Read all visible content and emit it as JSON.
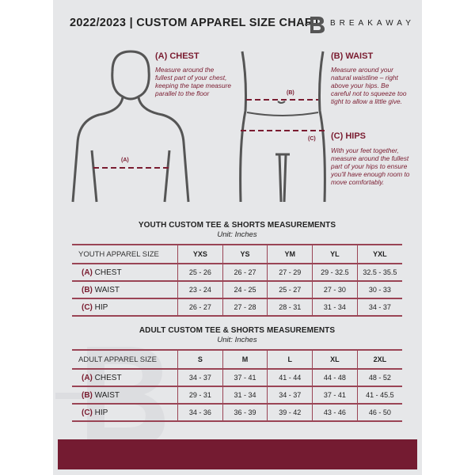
{
  "header": {
    "title": "2022/2023  |  CUSTOM APPAREL SIZE CHART",
    "brand": "BREAKAWAY"
  },
  "colors": {
    "accent": "#741b31",
    "background": "#e6e7e9"
  },
  "chest": {
    "title": "(A) CHEST",
    "marker": "(A)",
    "desc": "Measure around the fullest part of your chest, keeping the tape measure parallel to the floor"
  },
  "waist": {
    "title": "(B) WAIST",
    "marker": "(B)",
    "desc": "Measure around your natural waistline – right above your hips. Be careful not to squeeze too tight to allow a little give."
  },
  "hips": {
    "title": "(C) HIPS",
    "marker": "(C)",
    "desc": "With your feet together, measure around the fullest part of your hips to ensure you'll have enough room to move comfortably."
  },
  "youth": {
    "title": "YOUTH CUSTOM TEE & SHORTS MEASUREMENTS",
    "unit": "Unit: Inches",
    "size_label": "YOUTH APPAREL SIZE",
    "sizes": [
      "YXS",
      "YS",
      "YM",
      "YL",
      "YXL"
    ],
    "rows": [
      {
        "letter": "(A)",
        "name": "CHEST",
        "values": [
          "25 - 26",
          "26 - 27",
          "27 - 29",
          "29 - 32.5",
          "32.5 - 35.5"
        ]
      },
      {
        "letter": "(B)",
        "name": "WAIST",
        "values": [
          "23 - 24",
          "24 - 25",
          "25 - 27",
          "27 - 30",
          "30 - 33"
        ]
      },
      {
        "letter": "(C)",
        "name": "HIP",
        "values": [
          "26 - 27",
          "27 - 28",
          "28 - 31",
          "31 - 34",
          "34 - 37"
        ]
      }
    ]
  },
  "adult": {
    "title": "ADULT CUSTOM TEE & SHORTS MEASUREMENTS",
    "unit": "Unit: Inches",
    "size_label": "ADULT APPAREL SIZE",
    "sizes": [
      "S",
      "M",
      "L",
      "XL",
      "2XL"
    ],
    "rows": [
      {
        "letter": "(A)",
        "name": "CHEST",
        "values": [
          "34 - 37",
          "37 - 41",
          "41 - 44",
          "44 - 48",
          "48 - 52"
        ]
      },
      {
        "letter": "(B)",
        "name": "WAIST",
        "values": [
          "29 - 31",
          "31 - 34",
          "34 - 37",
          "37 - 41",
          "41 - 45.5"
        ]
      },
      {
        "letter": "(C)",
        "name": "HIP",
        "values": [
          "34 - 36",
          "36 - 39",
          "39 - 42",
          "43 - 46",
          "46 - 50"
        ]
      }
    ]
  }
}
